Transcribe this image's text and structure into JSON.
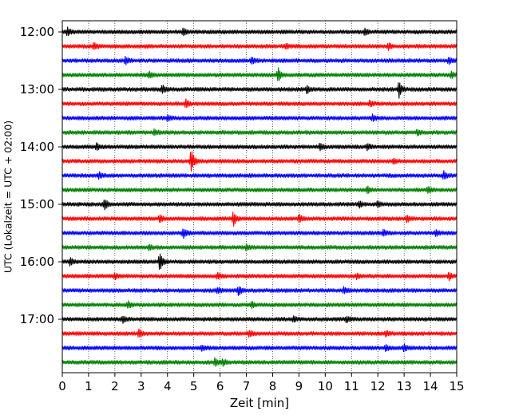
{
  "chart_data": {
    "type": "line",
    "title": "",
    "xlabel": "Zeit  [min]",
    "ylabel": "UTC (Lokalzeit = UTC + 02:00)",
    "xlim": [
      0,
      15
    ],
    "x_ticks": [
      0,
      1,
      2,
      3,
      4,
      5,
      6,
      7,
      8,
      9,
      10,
      11,
      12,
      13,
      14,
      15
    ],
    "y_tick_labels": [
      "12:00",
      "13:00",
      "14:00",
      "15:00",
      "16:00",
      "17:00"
    ],
    "y_tick_trace_index": [
      0,
      4,
      8,
      12,
      16,
      20
    ],
    "grid_x": true,
    "trace_interval_min": 15,
    "trace_colors": [
      "#000000",
      "#ff0000",
      "#0000ff",
      "#008000"
    ],
    "traces": [
      {
        "start": "12:00",
        "color": "#000000",
        "events": [
          [
            0.2,
            0.5
          ],
          [
            4.6,
            0.5
          ],
          [
            11.5,
            0.4
          ]
        ]
      },
      {
        "start": "12:15",
        "color": "#ff0000",
        "events": [
          [
            1.2,
            0.4
          ],
          [
            8.5,
            0.4
          ],
          [
            12.4,
            0.4
          ]
        ]
      },
      {
        "start": "12:30",
        "color": "#0000ff",
        "events": [
          [
            2.4,
            0.5
          ],
          [
            7.2,
            0.4
          ],
          [
            14.7,
            0.5
          ]
        ]
      },
      {
        "start": "12:45",
        "color": "#008000",
        "events": [
          [
            3.3,
            0.4
          ],
          [
            8.2,
            1.1
          ],
          [
            14.8,
            0.5
          ]
        ]
      },
      {
        "start": "13:00",
        "color": "#000000",
        "events": [
          [
            3.8,
            0.6
          ],
          [
            9.3,
            0.5
          ],
          [
            12.8,
            1.1
          ]
        ]
      },
      {
        "start": "13:15",
        "color": "#ff0000",
        "events": [
          [
            4.7,
            0.5
          ],
          [
            11.7,
            0.4
          ]
        ]
      },
      {
        "start": "13:30",
        "color": "#0000ff",
        "events": [
          [
            4.0,
            0.4
          ],
          [
            11.8,
            0.4
          ]
        ]
      },
      {
        "start": "13:45",
        "color": "#008000",
        "events": [
          [
            3.5,
            0.4
          ],
          [
            13.5,
            0.4
          ]
        ]
      },
      {
        "start": "14:00",
        "color": "#000000",
        "events": [
          [
            1.3,
            0.4
          ],
          [
            9.8,
            0.5
          ],
          [
            11.6,
            0.4
          ]
        ]
      },
      {
        "start": "14:15",
        "color": "#ff0000",
        "events": [
          [
            4.9,
            1.8
          ],
          [
            12.6,
            0.4
          ]
        ]
      },
      {
        "start": "14:30",
        "color": "#0000ff",
        "events": [
          [
            1.4,
            0.4
          ],
          [
            14.5,
            0.6
          ]
        ]
      },
      {
        "start": "14:45",
        "color": "#008000",
        "events": [
          [
            11.6,
            0.5
          ],
          [
            13.9,
            0.5
          ]
        ]
      },
      {
        "start": "15:00",
        "color": "#000000",
        "events": [
          [
            1.6,
            0.8
          ],
          [
            11.3,
            0.4
          ],
          [
            12.0,
            0.4
          ]
        ]
      },
      {
        "start": "15:15",
        "color": "#ff0000",
        "events": [
          [
            3.7,
            0.5
          ],
          [
            6.5,
            1.0
          ],
          [
            9.0,
            0.5
          ],
          [
            13.1,
            0.4
          ]
        ]
      },
      {
        "start": "15:30",
        "color": "#0000ff",
        "events": [
          [
            4.6,
            0.7
          ],
          [
            12.2,
            0.4
          ],
          [
            14.2,
            0.4
          ]
        ]
      },
      {
        "start": "15:45",
        "color": "#008000",
        "events": [
          [
            3.3,
            0.4
          ],
          [
            7.0,
            0.4
          ]
        ]
      },
      {
        "start": "16:00",
        "color": "#000000",
        "events": [
          [
            3.7,
            1.3
          ],
          [
            0.3,
            0.5
          ]
        ]
      },
      {
        "start": "16:15",
        "color": "#ff0000",
        "events": [
          [
            2.0,
            0.4
          ],
          [
            5.9,
            0.4
          ],
          [
            11.2,
            0.4
          ],
          [
            14.7,
            0.5
          ]
        ]
      },
      {
        "start": "16:30",
        "color": "#0000ff",
        "events": [
          [
            6.7,
            0.7
          ],
          [
            5.9,
            0.4
          ],
          [
            10.7,
            0.4
          ]
        ]
      },
      {
        "start": "16:45",
        "color": "#008000",
        "events": [
          [
            2.5,
            0.4
          ],
          [
            7.2,
            0.4
          ]
        ]
      },
      {
        "start": "17:00",
        "color": "#000000",
        "events": [
          [
            2.3,
            0.4
          ],
          [
            8.8,
            0.4
          ],
          [
            10.8,
            0.4
          ]
        ]
      },
      {
        "start": "17:15",
        "color": "#ff0000",
        "events": [
          [
            2.9,
            0.6
          ],
          [
            7.1,
            0.4
          ],
          [
            12.3,
            0.4
          ]
        ]
      },
      {
        "start": "17:30",
        "color": "#0000ff",
        "events": [
          [
            5.3,
            0.4
          ],
          [
            12.3,
            0.4
          ],
          [
            13.0,
            0.5
          ]
        ]
      },
      {
        "start": "17:45",
        "color": "#008000",
        "events": [
          [
            5.8,
            0.5
          ],
          [
            6.1,
            0.4
          ]
        ]
      }
    ]
  }
}
